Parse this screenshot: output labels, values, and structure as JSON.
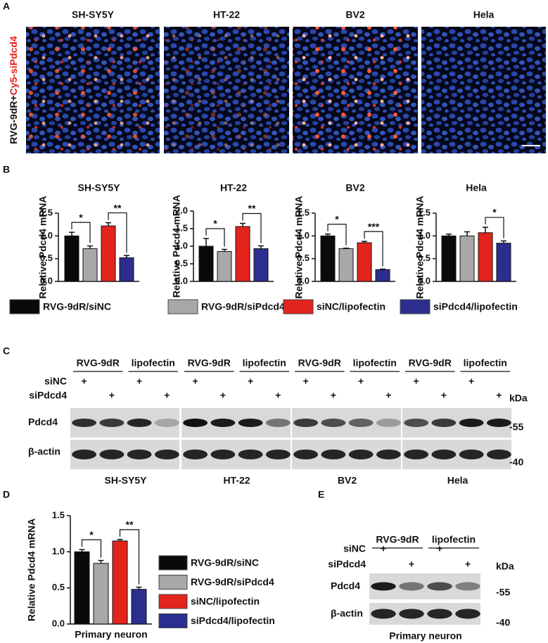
{
  "panel_labels": [
    "A",
    "B",
    "C",
    "D",
    "E"
  ],
  "panel_a": {
    "ylabel_parts": [
      "RVG-9dR+",
      "Cy5-siPdcd4"
    ],
    "ylabel_colors": [
      "#111111",
      "#e0201b"
    ]
  },
  "legend_b": [
    {
      "name": "RVG-9dR/siNC",
      "color": "#0a0a0a"
    },
    {
      "name": "RVG-9dR/siPdcd4",
      "color": "#a8a8a8"
    },
    {
      "name": "siNC/lipofectin",
      "color": "#e3241d"
    },
    {
      "name": "siPdcd4/lipofectin",
      "color": "#2b2e8f"
    }
  ],
  "chart_data": [
    {
      "type": "bar",
      "title": "SH-SY5Y",
      "ylabel": "Relative Pdcd4 mRNA",
      "values": [
        1.0,
        0.72,
        1.22,
        0.52
      ],
      "errors": [
        0.08,
        0.06,
        0.07,
        0.05
      ],
      "ylim": [
        0,
        1.5
      ],
      "yticks": [
        {
          "value": 0,
          "label": "0.0"
        },
        0.5,
        {
          "value": 1,
          "label": "1.0"
        },
        1.5
      ],
      "annotations": [
        {
          "text": "*",
          "bars": [
            0,
            1
          ]
        },
        {
          "text": "**",
          "bars": [
            2,
            3
          ]
        }
      ]
    },
    {
      "type": "bar",
      "title": "HT-22",
      "ylabel": "Relative Pdcd4 mRNA",
      "values": [
        1.0,
        0.85,
        1.56,
        0.93
      ],
      "errors": [
        0.22,
        0.06,
        0.09,
        0.08
      ],
      "ylim": [
        0,
        2
      ],
      "yticks": [
        {
          "value": 0,
          "label": "0.0"
        },
        0.5,
        {
          "value": 1,
          "label": "1.0"
        },
        1.5,
        {
          "value": 2,
          "label": "2.0"
        }
      ],
      "annotations": [
        {
          "text": "*",
          "bars": [
            0,
            1
          ]
        },
        {
          "text": "**",
          "bars": [
            2,
            3
          ]
        }
      ]
    },
    {
      "type": "bar",
      "title": "BV2",
      "ylabel": "Relative Pdcd4 mRNA",
      "values": [
        1.0,
        0.72,
        0.85,
        0.26
      ],
      "errors": [
        0.04,
        0.01,
        0.03,
        0.01
      ],
      "ylim": [
        0,
        1.5
      ],
      "yticks": [
        {
          "value": 0,
          "label": "0.0"
        },
        0.5,
        {
          "value": 1,
          "label": "1.0"
        },
        1.5
      ],
      "annotations": [
        {
          "text": "*",
          "bars": [
            0,
            1
          ]
        },
        {
          "text": "***",
          "bars": [
            2,
            3
          ]
        }
      ]
    },
    {
      "type": "bar",
      "title": "Hela",
      "ylabel": "Relative Pdcd4 mRNA",
      "values": [
        1.0,
        1.0,
        1.07,
        0.84
      ],
      "errors": [
        0.04,
        0.09,
        0.12,
        0.05
      ],
      "ylim": [
        0,
        1.5
      ],
      "yticks": [
        {
          "value": 0,
          "label": "0.0"
        },
        0.5,
        {
          "value": 1,
          "label": "1.0"
        },
        1.5
      ],
      "annotations": [
        {
          "text": "*",
          "bars": [
            2,
            3
          ]
        }
      ]
    },
    {
      "type": "bar",
      "title": "Primary neuron",
      "ylabel": "Relative Pdcd4 mRNA",
      "values": [
        1.0,
        0.84,
        1.15,
        0.48
      ],
      "errors": [
        0.03,
        0.04,
        0.02,
        0.03
      ],
      "ylim": [
        0,
        1.5
      ],
      "yticks": [
        {
          "value": 0,
          "label": "0.0"
        },
        0.5,
        {
          "value": 1,
          "label": "1.0"
        },
        1.5
      ],
      "annotations": [
        {
          "text": "*",
          "bars": [
            0,
            1
          ]
        },
        {
          "text": "**",
          "bars": [
            2,
            3
          ]
        }
      ],
      "legend": [
        {
          "name": "RVG-9dR/siNC",
          "color": "#0a0a0a"
        },
        {
          "name": "RVG-9dR/siPdcd4",
          "color": "#a8a8a8"
        },
        {
          "name": "siNC/lipofectin",
          "color": "#e3241d"
        },
        {
          "name": "siPdcd4/lipofectin",
          "color": "#2b2e8f"
        }
      ]
    }
  ],
  "blots": {
    "groups": [
      "RVG-9dR",
      "lipofectin"
    ],
    "treatments": [
      {
        "label": "siNC",
        "symbol": "+",
        "lanes": [
          0,
          2
        ]
      },
      {
        "label": "siPdcd4",
        "symbol": "+",
        "lanes": [
          1,
          3
        ]
      }
    ],
    "proteins": [
      "Pdcd4",
      "β-actin"
    ],
    "unit": "kDa",
    "markers": [
      "-55",
      "-40"
    ]
  }
}
